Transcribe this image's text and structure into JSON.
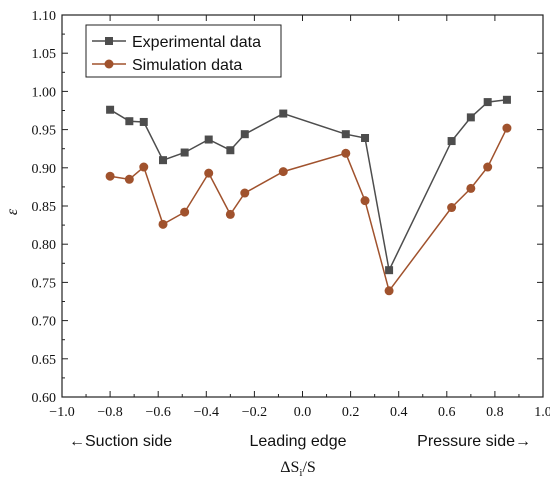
{
  "chart_data": {
    "type": "line",
    "xlabel_main": "ΔS",
    "xlabel_sub": "i",
    "xlabel_tail": "/S",
    "ylabel": "ε",
    "xlim": [
      -1.0,
      1.0
    ],
    "ylim": [
      0.6,
      1.1
    ],
    "x_ticks": [
      "−1.0",
      "−0.8",
      "−0.6",
      "−0.4",
      "−0.2",
      "0.0",
      "0.2",
      "0.4",
      "0.6",
      "0.8",
      "1.0"
    ],
    "x_tick_values": [
      -1.0,
      -0.8,
      -0.6,
      -0.4,
      -0.2,
      0.0,
      0.2,
      0.4,
      0.6,
      0.8,
      1.0
    ],
    "y_ticks": [
      "0.60",
      "0.65",
      "0.70",
      "0.75",
      "0.80",
      "0.85",
      "0.90",
      "0.95",
      "1.00",
      "1.05",
      "1.10"
    ],
    "y_tick_values": [
      0.6,
      0.65,
      0.7,
      0.75,
      0.8,
      0.85,
      0.9,
      0.95,
      1.0,
      1.05,
      1.1
    ],
    "legend_position": "top-left",
    "annotations": {
      "left": "←Suction side",
      "center": "Leading edge",
      "right": "Pressure side→"
    },
    "series": [
      {
        "name": "Experimental data",
        "color": "#4d4d4d",
        "marker": "square",
        "x": [
          -0.8,
          -0.72,
          -0.66,
          -0.58,
          -0.49,
          -0.39,
          -0.3,
          -0.24,
          -0.08,
          0.18,
          0.26,
          0.36,
          0.62,
          0.7,
          0.77,
          0.85
        ],
        "y": [
          0.976,
          0.961,
          0.96,
          0.91,
          0.92,
          0.937,
          0.923,
          0.944,
          0.971,
          0.944,
          0.939,
          0.766,
          0.935,
          0.966,
          0.986,
          0.989
        ]
      },
      {
        "name": "Simulation data",
        "color": "#a0522d",
        "marker": "circle",
        "x": [
          -0.8,
          -0.72,
          -0.66,
          -0.58,
          -0.49,
          -0.39,
          -0.3,
          -0.24,
          -0.08,
          0.18,
          0.26,
          0.36,
          0.62,
          0.7,
          0.77,
          0.85
        ],
        "y": [
          0.889,
          0.885,
          0.901,
          0.826,
          0.842,
          0.893,
          0.839,
          0.867,
          0.895,
          0.919,
          0.857,
          0.739,
          0.848,
          0.873,
          0.901,
          0.952
        ]
      }
    ]
  }
}
